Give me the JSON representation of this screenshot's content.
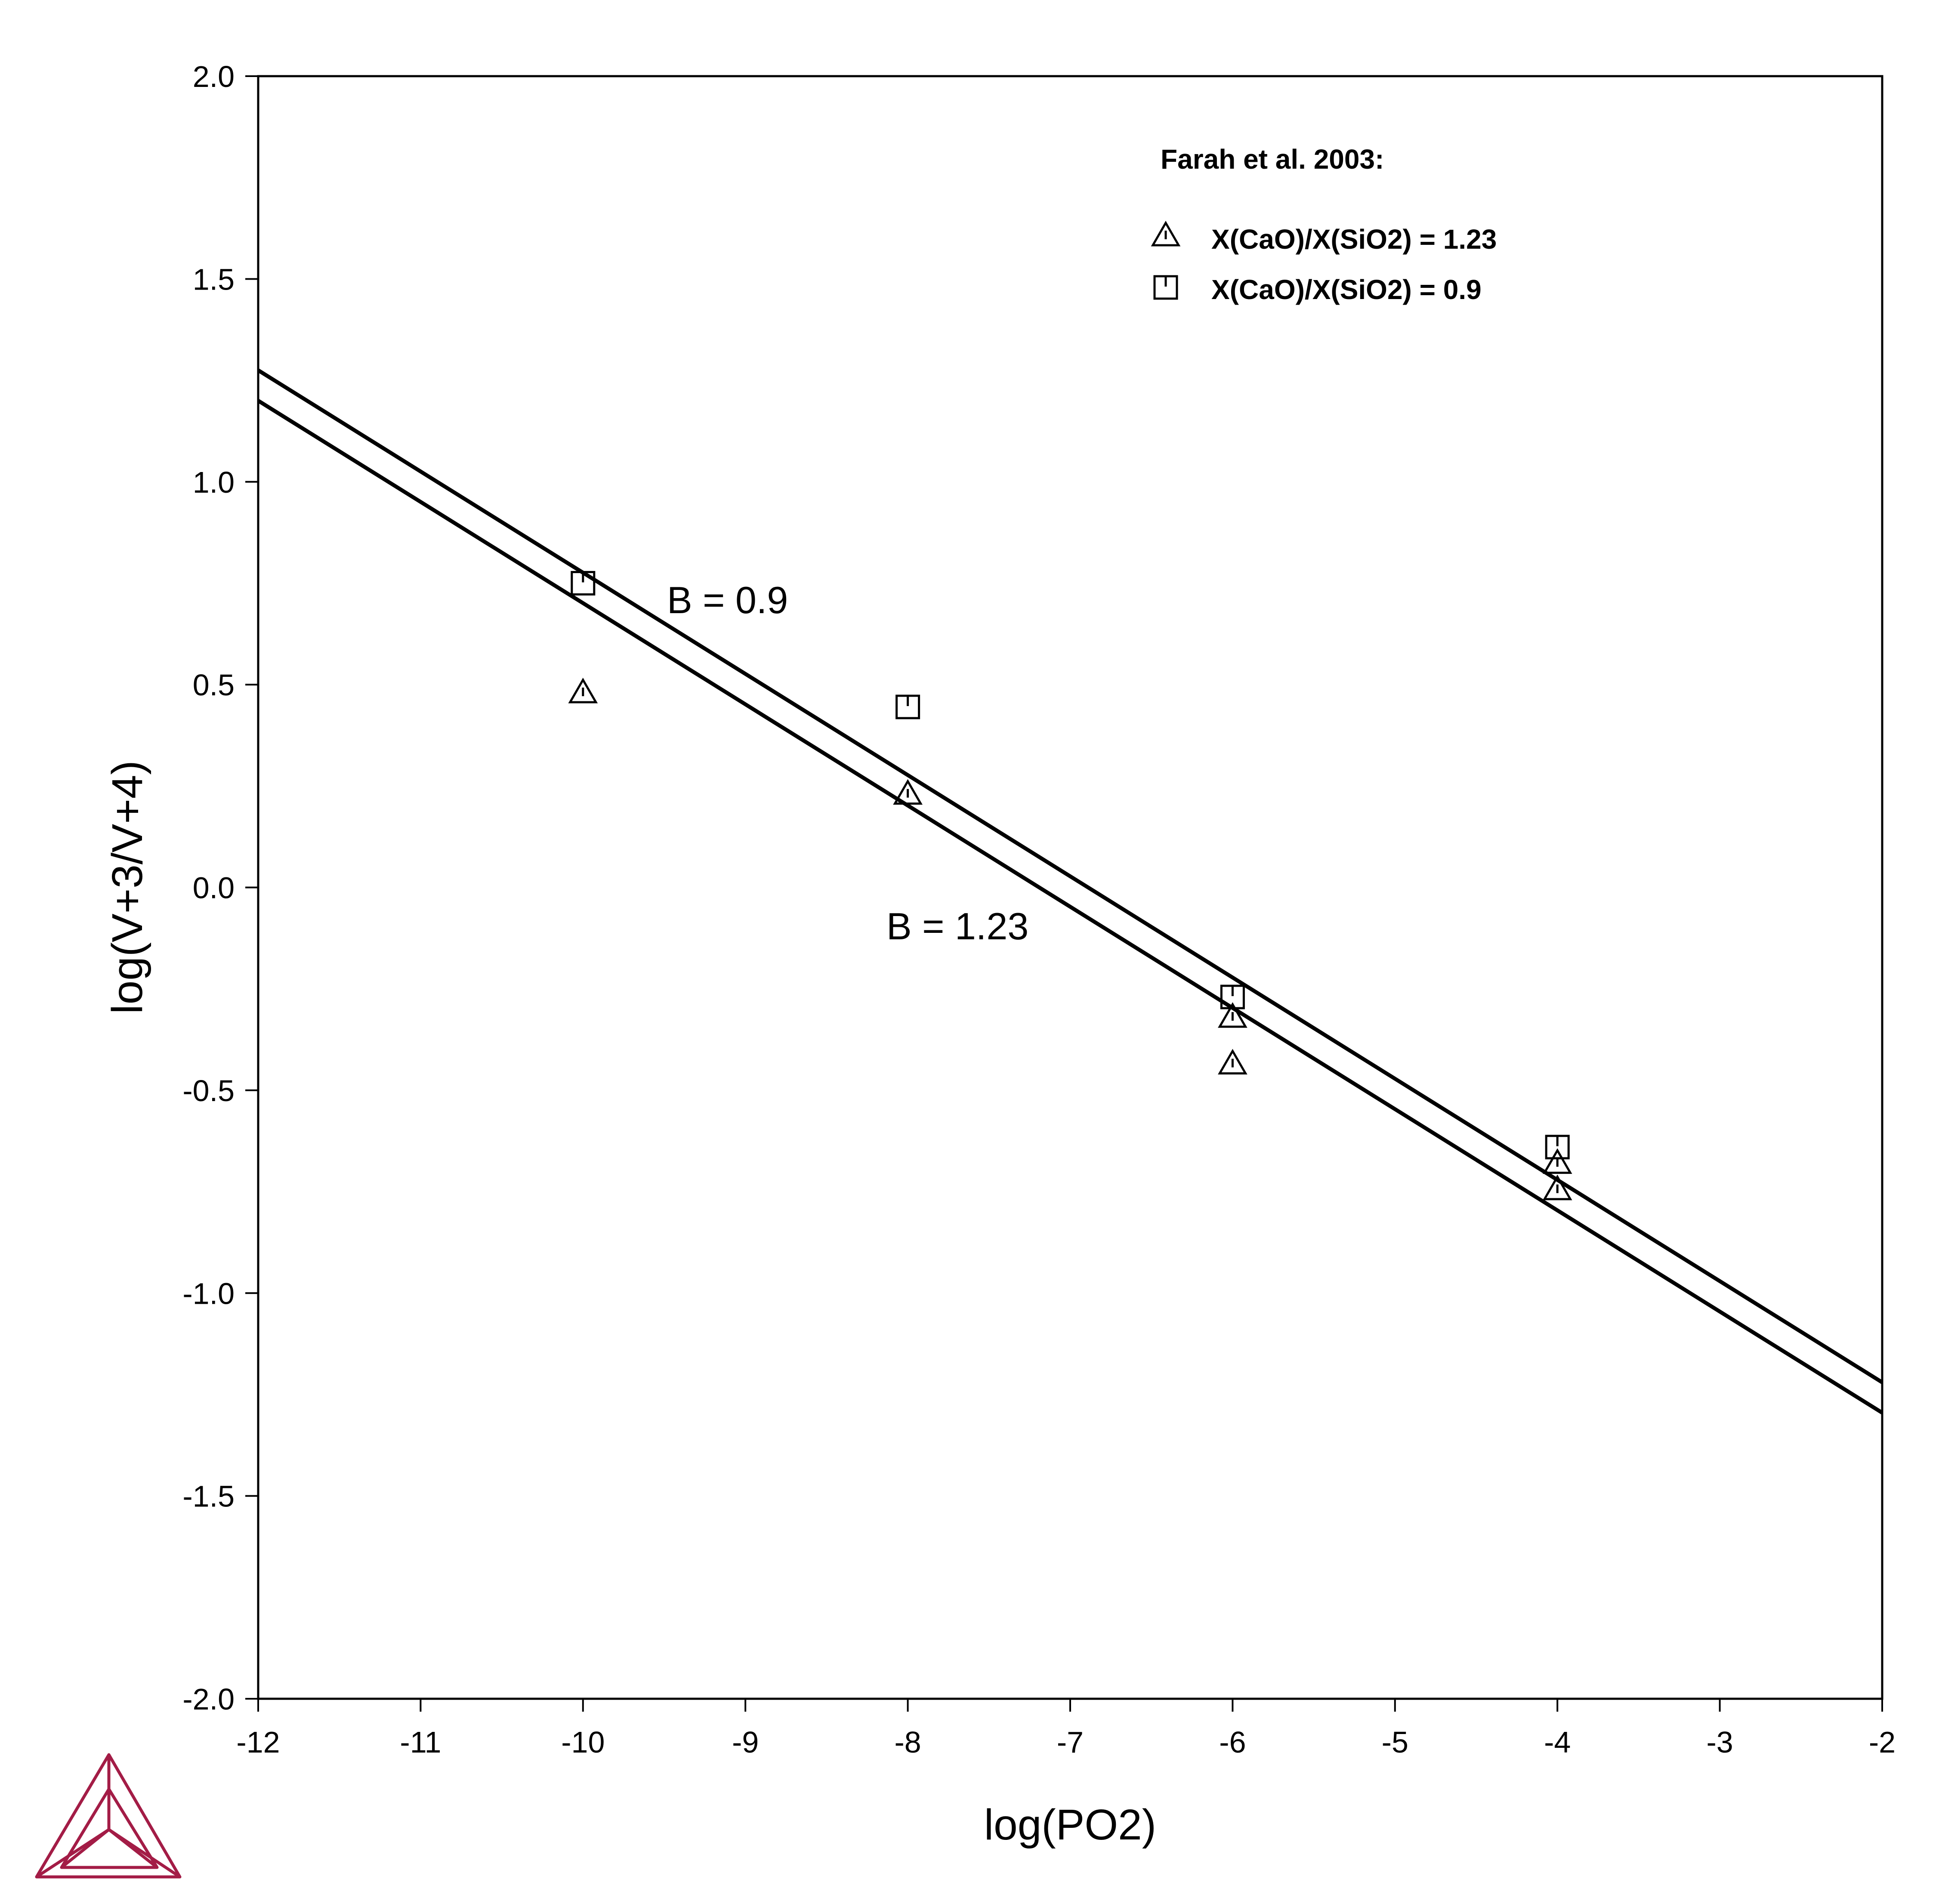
{
  "chart_data": {
    "type": "line",
    "xlabel": "log(PO2)",
    "ylabel": "log(V+3/V+4)",
    "xlim": [
      -12,
      -2
    ],
    "ylim": [
      -2.0,
      2.0
    ],
    "x_ticks": [
      "-12",
      "-11",
      "-10",
      "-9",
      "-8",
      "-7",
      "-6",
      "-5",
      "-4",
      "-3",
      "-2"
    ],
    "y_ticks": [
      "-2.0",
      "-1.5",
      "-1.0",
      "-0.5",
      "0.0",
      "0.5",
      "1.0",
      "1.5",
      "2.0"
    ],
    "grid": false,
    "legend": {
      "title": "Farah et al. 2003:",
      "placement": "top-right",
      "entries": [
        {
          "marker": "triangle",
          "label": "X(CaO)/X(SiO2) = 1.23"
        },
        {
          "marker": "square",
          "label": "X(CaO)/X(SiO2) = 0.9"
        }
      ]
    },
    "lines": [
      {
        "label": "B = 0.9",
        "x": [
          -12,
          -2
        ],
        "y": [
          1.275,
          -1.22
        ]
      },
      {
        "label": "B = 1.23",
        "x": [
          -12,
          -2
        ],
        "y": [
          1.2,
          -1.295
        ]
      }
    ],
    "series": [
      {
        "marker": "triangle",
        "x": [
          -10,
          -8,
          -6,
          -6,
          -4,
          -4
        ],
        "y": [
          0.48,
          0.23,
          -0.32,
          -0.435,
          -0.68,
          -0.745
        ]
      },
      {
        "marker": "square",
        "x": [
          -10,
          -8,
          -6,
          -4
        ],
        "y": [
          0.75,
          0.445,
          -0.27,
          -0.64
        ]
      }
    ]
  }
}
